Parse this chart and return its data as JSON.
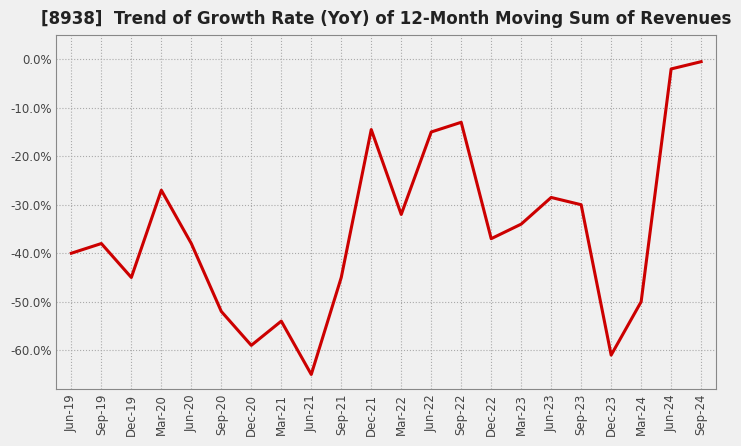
{
  "title": "[8938]  Trend of Growth Rate (YoY) of 12-Month Moving Sum of Revenues",
  "x_labels": [
    "Jun-19",
    "Sep-19",
    "Dec-19",
    "Mar-20",
    "Jun-20",
    "Sep-20",
    "Dec-20",
    "Mar-21",
    "Jun-21",
    "Sep-21",
    "Dec-21",
    "Mar-22",
    "Jun-22",
    "Sep-22",
    "Dec-22",
    "Mar-23",
    "Jun-23",
    "Sep-23",
    "Dec-23",
    "Mar-24",
    "Jun-24",
    "Sep-24"
  ],
  "y_values": [
    -40.0,
    -38.0,
    -45.0,
    -27.0,
    -38.0,
    -52.0,
    -59.0,
    -54.0,
    -65.0,
    -45.0,
    -14.5,
    -32.0,
    -15.0,
    -13.0,
    -37.0,
    -34.0,
    -28.5,
    -30.0,
    -61.0,
    -50.0,
    -2.0,
    -0.5
  ],
  "line_color": "#cc0000",
  "line_width": 2.2,
  "background_color": "#f0f0f0",
  "plot_bg_color": "#f0f0f0",
  "grid_color": "#aaaaaa",
  "ylim": [
    -68,
    5
  ],
  "yticks": [
    0,
    -10,
    -20,
    -30,
    -40,
    -50,
    -60
  ],
  "title_fontsize": 12,
  "tick_fontsize": 8.5,
  "axis_label_color": "#444444"
}
